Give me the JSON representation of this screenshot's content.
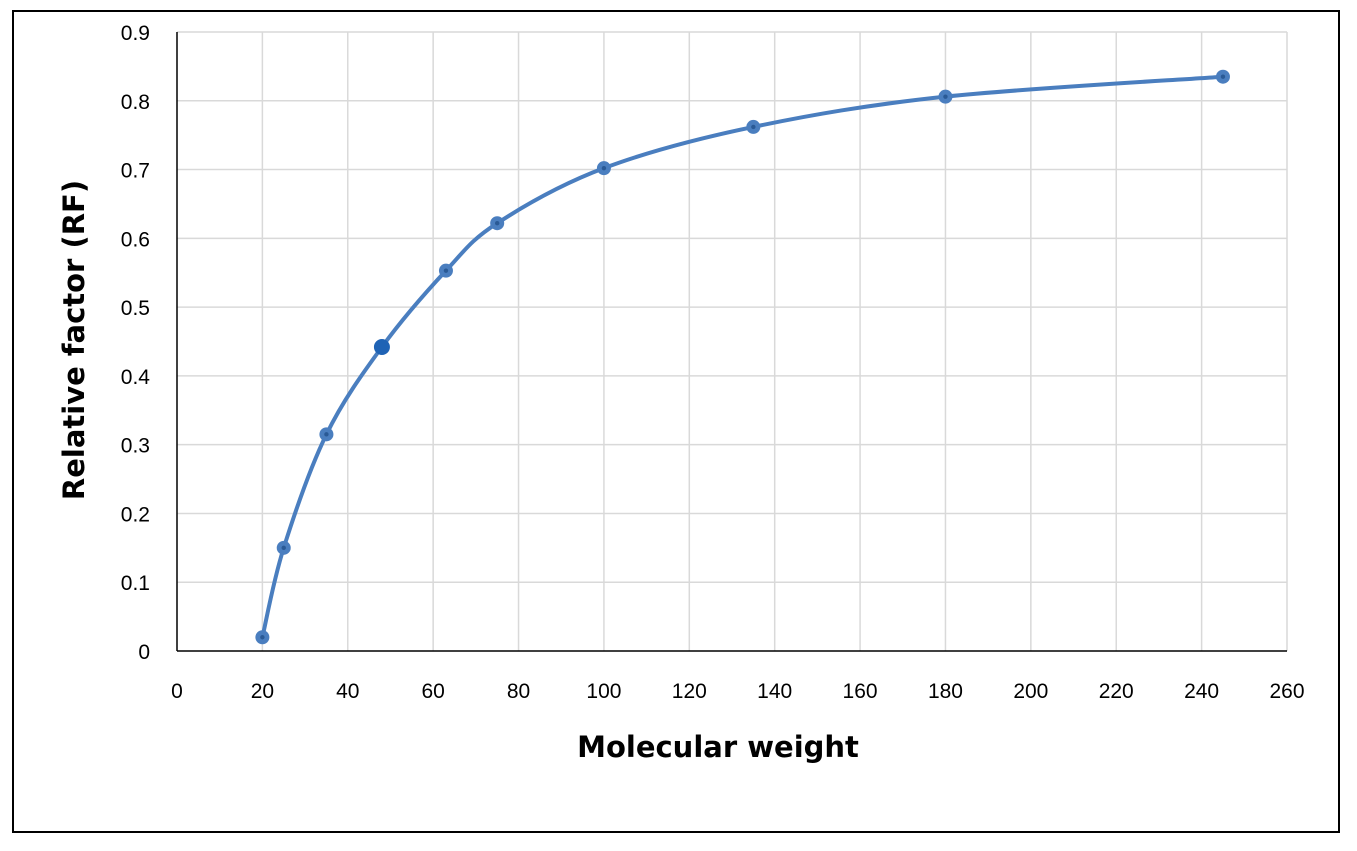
{
  "chart_data": {
    "type": "scatter",
    "title": "",
    "xlabel": "Molecular weight",
    "ylabel": "Relative factor (RF)",
    "xlim": [
      0,
      260
    ],
    "ylim": [
      0,
      0.9
    ],
    "xticks": [
      0,
      20,
      40,
      60,
      80,
      100,
      120,
      140,
      160,
      180,
      200,
      220,
      240,
      260
    ],
    "yticks": [
      0,
      0.1,
      0.2,
      0.3,
      0.4,
      0.5,
      0.6,
      0.7,
      0.8,
      0.9
    ],
    "grid": true,
    "legend": "none",
    "line_style": "smooth",
    "series": [
      {
        "color": "#4a7ebf",
        "x": [
          20,
          25,
          35,
          48,
          63,
          75,
          100,
          135,
          180,
          245
        ],
        "y": [
          0.02,
          0.15,
          0.315,
          0.442,
          0.553,
          0.622,
          0.702,
          0.762,
          0.806,
          0.835
        ],
        "highlight_point_index": 3,
        "highlight_color": "#1f63b5"
      }
    ]
  }
}
